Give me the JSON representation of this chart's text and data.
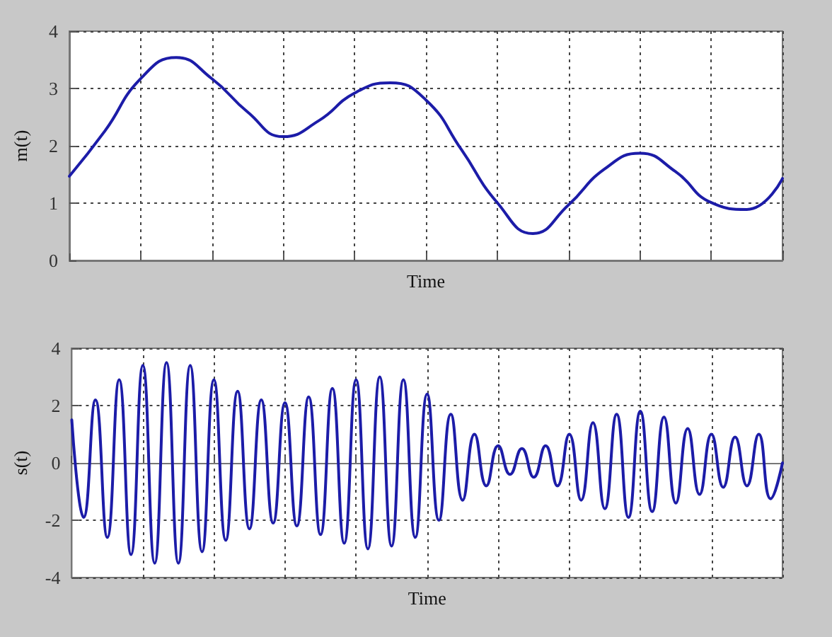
{
  "chart_data": [
    {
      "type": "line",
      "xlabel": "Time",
      "ylabel": "m(t)",
      "color": "#1c1ca8",
      "grid": true,
      "tick_labels": "y",
      "categories": [
        null,
        null,
        null,
        null,
        null,
        null,
        null,
        null,
        null,
        null,
        null,
        null,
        null,
        null,
        null,
        null,
        null,
        null,
        null,
        null,
        null
      ],
      "ylim": [
        0,
        4
      ],
      "yticks": [
        0,
        1,
        2,
        3,
        4
      ],
      "values": [
        1.47,
        2.26,
        3.17,
        3.54,
        3.17,
        2.59,
        2.16,
        2.44,
        2.92,
        3.1,
        2.8,
        1.93,
        1.01,
        0.47,
        0.97,
        1.59,
        1.87,
        1.55,
        1.01,
        0.89,
        1.43
      ]
    },
    {
      "type": "line",
      "xlabel": "Time",
      "ylabel": "s(t)",
      "color": "#1c1ca8",
      "grid": true,
      "tick_labels": "y",
      "categories": [
        null,
        null,
        null,
        null,
        null,
        null,
        null,
        null,
        null,
        null,
        null,
        null,
        null,
        null,
        null,
        null,
        null,
        null,
        null,
        null,
        null,
        null,
        null,
        null,
        null,
        null,
        null,
        null,
        null,
        null,
        null,
        null,
        null,
        null,
        null,
        null,
        null,
        null,
        null,
        null,
        null,
        null,
        null,
        null,
        null,
        null,
        null,
        null,
        null,
        null,
        null,
        null,
        null,
        null,
        null,
        null,
        null,
        null,
        null,
        null,
        null
      ],
      "ylim": [
        -4,
        4
      ],
      "yticks": [
        -4,
        -2,
        0,
        2,
        4
      ],
      "values": [
        1.5,
        -1.9,
        2.2,
        -2.6,
        2.9,
        -3.2,
        3.4,
        -3.5,
        3.5,
        -3.5,
        3.4,
        -3.1,
        2.9,
        -2.7,
        2.5,
        -2.3,
        2.2,
        -2.1,
        2.1,
        -2.2,
        2.3,
        -2.5,
        2.6,
        -2.8,
        2.9,
        -3.0,
        3.0,
        -2.9,
        2.9,
        -2.6,
        2.4,
        -2.0,
        1.7,
        -1.3,
        1.0,
        -0.8,
        0.6,
        -0.4,
        0.5,
        -0.5,
        0.6,
        -0.8,
        1.0,
        -1.3,
        1.4,
        -1.6,
        1.7,
        -1.9,
        1.8,
        -1.7,
        1.6,
        -1.4,
        1.2,
        -1.1,
        1.0,
        -0.85,
        0.9,
        -0.8,
        1.0,
        -1.25,
        0.0
      ]
    }
  ]
}
